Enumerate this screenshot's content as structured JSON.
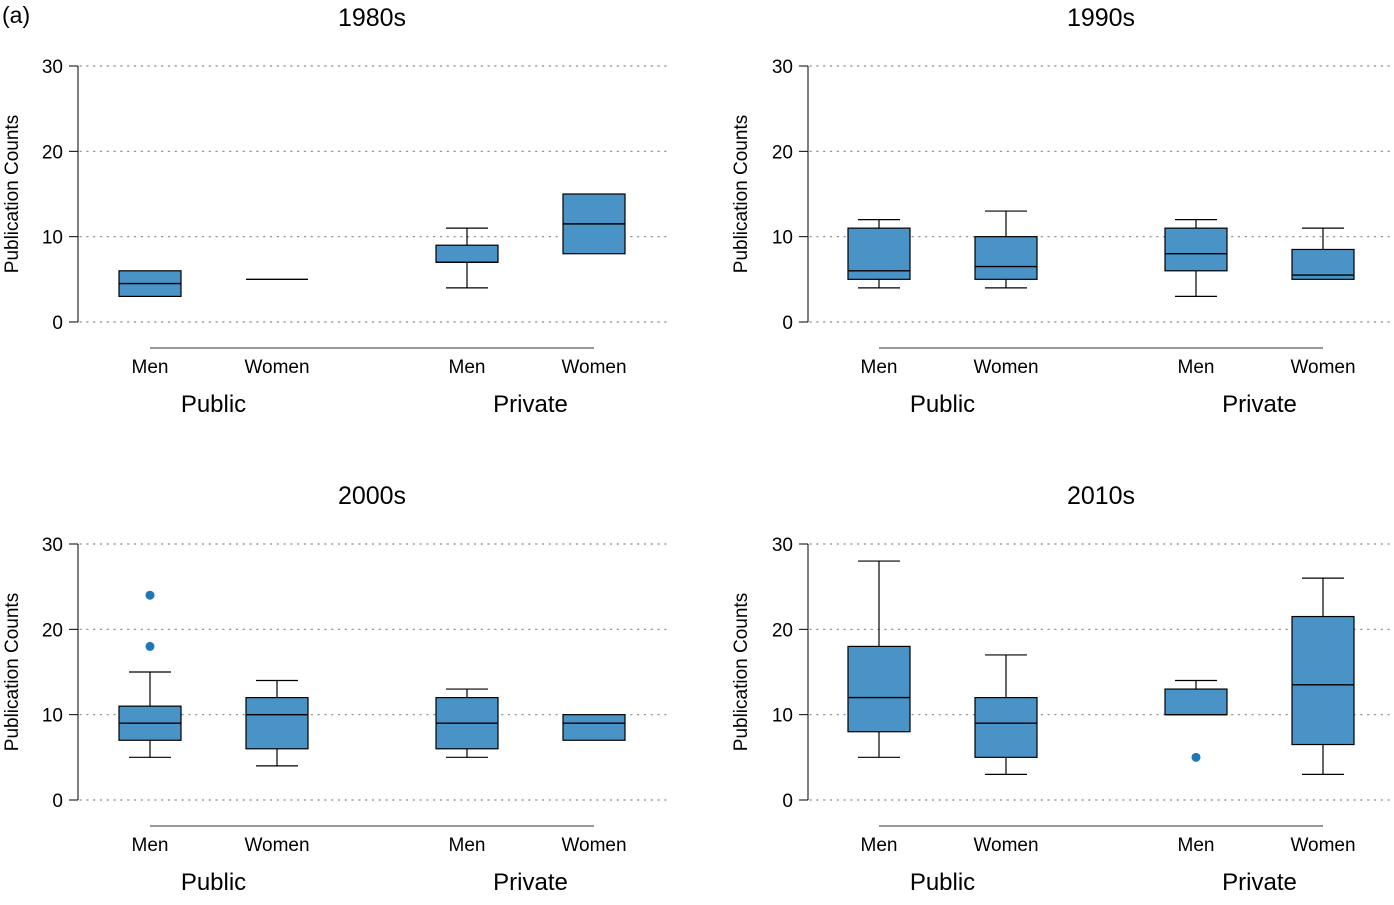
{
  "figure_label": "(a)",
  "colors": {
    "box_fill": "#4a93c7",
    "outlier": "#1f77b4",
    "grid": "#888888",
    "group_line": "#999999",
    "stroke": "#000000"
  },
  "chart_data": [
    {
      "type": "box",
      "title": "1980s",
      "ylabel": "Publication Counts",
      "ylim": [
        0,
        30
      ],
      "yticks": [
        0,
        10,
        20,
        30
      ],
      "grid": "horizontal dotted",
      "categories": [
        "Men",
        "Women",
        "Men",
        "Women"
      ],
      "groups": [
        {
          "label": "Public",
          "categories": [
            "Men",
            "Women"
          ]
        },
        {
          "label": "Private",
          "categories": [
            "Men",
            "Women"
          ]
        }
      ],
      "boxes": [
        {
          "group": "Public",
          "category": "Men",
          "whisker_low": 3,
          "q1": 3,
          "median": 4.5,
          "q3": 6,
          "whisker_high": 6,
          "outliers": []
        },
        {
          "group": "Public",
          "category": "Women",
          "whisker_low": 5,
          "q1": 5,
          "median": 5,
          "q3": 5,
          "whisker_high": 5,
          "outliers": []
        },
        {
          "group": "Private",
          "category": "Men",
          "whisker_low": 4,
          "q1": 7,
          "median": 7,
          "q3": 9,
          "whisker_high": 11,
          "outliers": []
        },
        {
          "group": "Private",
          "category": "Women",
          "whisker_low": 8,
          "q1": 8,
          "median": 11.5,
          "q3": 15,
          "whisker_high": 15,
          "outliers": []
        }
      ]
    },
    {
      "type": "box",
      "title": "1990s",
      "ylabel": "Publication Counts",
      "ylim": [
        0,
        30
      ],
      "yticks": [
        0,
        10,
        20,
        30
      ],
      "grid": "horizontal dotted",
      "categories": [
        "Men",
        "Women",
        "Men",
        "Women"
      ],
      "groups": [
        {
          "label": "Public",
          "categories": [
            "Men",
            "Women"
          ]
        },
        {
          "label": "Private",
          "categories": [
            "Men",
            "Women"
          ]
        }
      ],
      "boxes": [
        {
          "group": "Public",
          "category": "Men",
          "whisker_low": 4,
          "q1": 5,
          "median": 6,
          "q3": 11,
          "whisker_high": 12,
          "outliers": []
        },
        {
          "group": "Public",
          "category": "Women",
          "whisker_low": 4,
          "q1": 5,
          "median": 6.5,
          "q3": 10,
          "whisker_high": 13,
          "outliers": []
        },
        {
          "group": "Private",
          "category": "Men",
          "whisker_low": 3,
          "q1": 6,
          "median": 8,
          "q3": 11,
          "whisker_high": 12,
          "outliers": []
        },
        {
          "group": "Private",
          "category": "Women",
          "whisker_low": 5,
          "q1": 5,
          "median": 5.5,
          "q3": 8.5,
          "whisker_high": 11,
          "outliers": []
        }
      ]
    },
    {
      "type": "box",
      "title": "2000s",
      "ylabel": "Publication Counts",
      "ylim": [
        0,
        30
      ],
      "yticks": [
        0,
        10,
        20,
        30
      ],
      "grid": "horizontal dotted",
      "categories": [
        "Men",
        "Women",
        "Men",
        "Women"
      ],
      "groups": [
        {
          "label": "Public",
          "categories": [
            "Men",
            "Women"
          ]
        },
        {
          "label": "Private",
          "categories": [
            "Men",
            "Women"
          ]
        }
      ],
      "boxes": [
        {
          "group": "Public",
          "category": "Men",
          "whisker_low": 5,
          "q1": 7,
          "median": 9,
          "q3": 11,
          "whisker_high": 15,
          "outliers": [
            18,
            24
          ]
        },
        {
          "group": "Public",
          "category": "Women",
          "whisker_low": 4,
          "q1": 6,
          "median": 10,
          "q3": 12,
          "whisker_high": 14,
          "outliers": []
        },
        {
          "group": "Private",
          "category": "Men",
          "whisker_low": 5,
          "q1": 6,
          "median": 9,
          "q3": 12,
          "whisker_high": 13,
          "outliers": []
        },
        {
          "group": "Private",
          "category": "Women",
          "whisker_low": 7,
          "q1": 7,
          "median": 9,
          "q3": 10,
          "whisker_high": 10,
          "outliers": []
        }
      ]
    },
    {
      "type": "box",
      "title": "2010s",
      "ylabel": "Publication Counts",
      "ylim": [
        0,
        30
      ],
      "yticks": [
        0,
        10,
        20,
        30
      ],
      "grid": "horizontal dotted",
      "categories": [
        "Men",
        "Women",
        "Men",
        "Women"
      ],
      "groups": [
        {
          "label": "Public",
          "categories": [
            "Men",
            "Women"
          ]
        },
        {
          "label": "Private",
          "categories": [
            "Men",
            "Women"
          ]
        }
      ],
      "boxes": [
        {
          "group": "Public",
          "category": "Men",
          "whisker_low": 5,
          "q1": 8,
          "median": 12,
          "q3": 18,
          "whisker_high": 28,
          "outliers": []
        },
        {
          "group": "Public",
          "category": "Women",
          "whisker_low": 3,
          "q1": 5,
          "median": 9,
          "q3": 12,
          "whisker_high": 17,
          "outliers": []
        },
        {
          "group": "Private",
          "category": "Men",
          "whisker_low": 10,
          "q1": 10,
          "median": 10,
          "q3": 13,
          "whisker_high": 14,
          "outliers": [
            5
          ]
        },
        {
          "group": "Private",
          "category": "Women",
          "whisker_low": 3,
          "q1": 6.5,
          "median": 13.5,
          "q3": 21.5,
          "whisker_high": 26,
          "outliers": []
        }
      ]
    }
  ]
}
